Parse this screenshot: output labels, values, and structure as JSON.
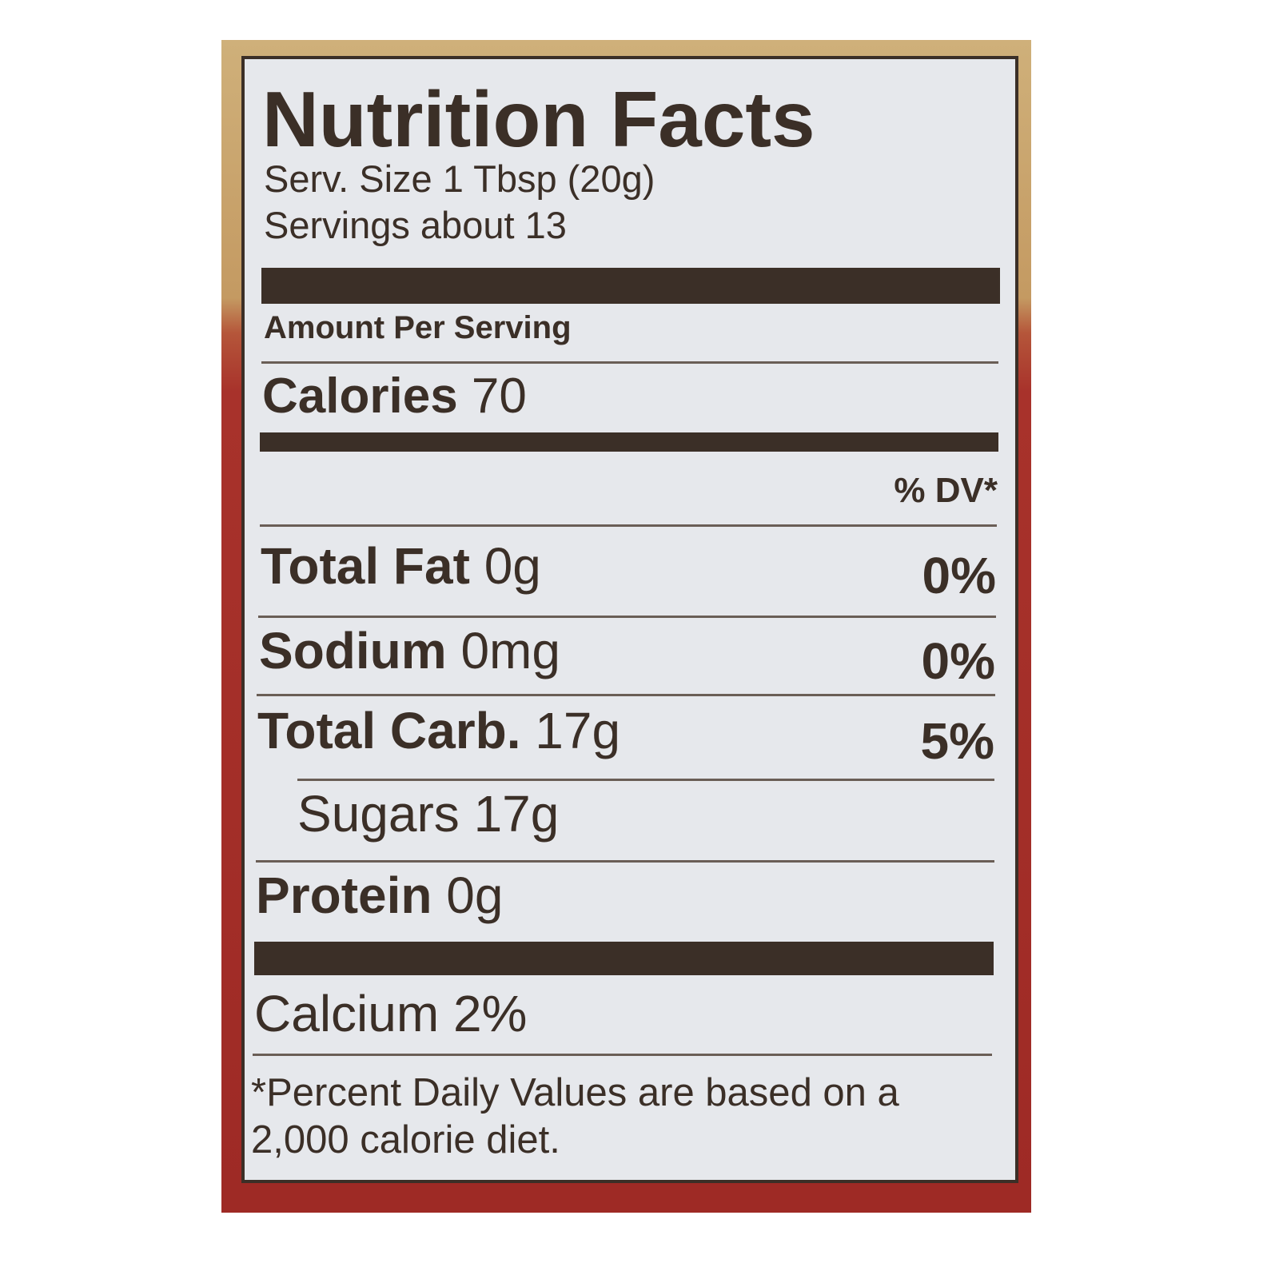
{
  "title": "Nutrition Facts",
  "serving_size": "Serv. Size 1 Tbsp (20g)",
  "servings": "Servings about 13",
  "amount_per_serving": "Amount Per Serving",
  "calories": {
    "label": "Calories",
    "value": "70"
  },
  "dv_header": "% DV*",
  "nutrients": [
    {
      "label": "Total Fat",
      "amount": "0g",
      "dv": "0%"
    },
    {
      "label": "Sodium",
      "amount": "0mg",
      "dv": "0%"
    },
    {
      "label": "Total Carb.",
      "amount": "17g",
      "dv": "5%"
    },
    {
      "label": "Sugars",
      "amount": "17g"
    },
    {
      "label": "Protein",
      "amount": "0g"
    }
  ],
  "calcium": "Calcium 2%",
  "footnote": [
    "*Percent Daily Values are based on a",
    "2,000 calorie diet."
  ],
  "colors": {
    "ink": "#3b2f27",
    "label_bg": "#e6e8ec",
    "package_top": "#c9a66e",
    "package_bottom": "#a8322b"
  }
}
